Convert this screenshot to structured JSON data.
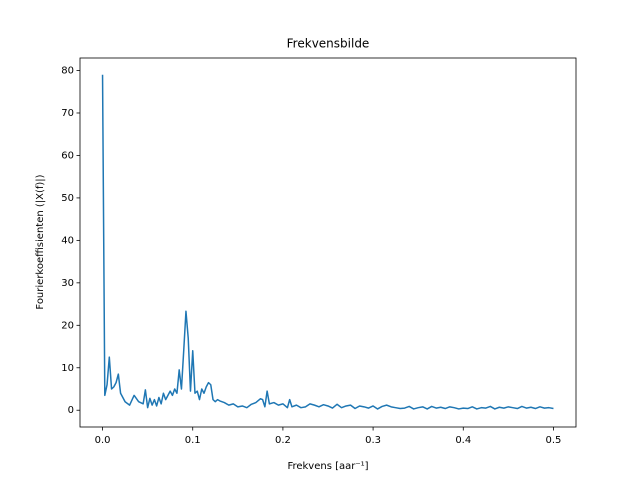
{
  "chart_data": {
    "type": "line",
    "title": "Frekvensbilde",
    "xlabel": "Frekvens [aar⁻¹]",
    "ylabel": "Fourierkoeffisienten (|X(f)|)",
    "color": "#1f77b4",
    "x": [
      0,
      0.0025,
      0.005,
      0.0075,
      0.01,
      0.0125,
      0.015,
      0.0175,
      0.02,
      0.025,
      0.03,
      0.035,
      0.04,
      0.045,
      0.0475,
      0.05,
      0.0525,
      0.055,
      0.0575,
      0.06,
      0.0625,
      0.065,
      0.0675,
      0.07,
      0.0725,
      0.075,
      0.0775,
      0.08,
      0.0825,
      0.085,
      0.0875,
      0.09,
      0.0925,
      0.095,
      0.0975,
      0.1,
      0.1025,
      0.105,
      0.1075,
      0.11,
      0.1125,
      0.115,
      0.1175,
      0.12,
      0.1225,
      0.125,
      0.1275,
      0.13,
      0.135,
      0.14,
      0.145,
      0.15,
      0.155,
      0.16,
      0.165,
      0.17,
      0.175,
      0.1775,
      0.18,
      0.1825,
      0.185,
      0.19,
      0.195,
      0.2,
      0.205,
      0.2075,
      0.21,
      0.215,
      0.22,
      0.225,
      0.23,
      0.235,
      0.24,
      0.245,
      0.25,
      0.255,
      0.26,
      0.265,
      0.27,
      0.275,
      0.28,
      0.285,
      0.29,
      0.295,
      0.3,
      0.305,
      0.31,
      0.315,
      0.32,
      0.325,
      0.33,
      0.335,
      0.34,
      0.345,
      0.35,
      0.355,
      0.36,
      0.365,
      0.37,
      0.375,
      0.38,
      0.385,
      0.39,
      0.395,
      0.4,
      0.405,
      0.41,
      0.415,
      0.42,
      0.425,
      0.43,
      0.435,
      0.44,
      0.445,
      0.45,
      0.455,
      0.46,
      0.465,
      0.47,
      0.475,
      0.48,
      0.485,
      0.49,
      0.495,
      0.5
    ],
    "values": [
      79,
      3.5,
      6,
      12.5,
      5,
      5.5,
      6.5,
      8.5,
      4,
      2,
      1.2,
      3.5,
      2,
      1.5,
      4.8,
      0.6,
      2.8,
      1.2,
      2.5,
      1,
      3,
      1.5,
      4,
      2.5,
      3.5,
      4.5,
      3.5,
      5,
      4,
      9.5,
      5,
      14,
      23.3,
      17,
      4.5,
      14,
      4,
      4.5,
      2.5,
      5,
      4,
      5.5,
      6.5,
      6,
      2.5,
      2,
      2.5,
      2.2,
      1.8,
      1.2,
      1.5,
      0.8,
      1,
      0.6,
      1.4,
      1.8,
      2.7,
      2.5,
      0.8,
      4.5,
      1.5,
      1.8,
      1.2,
      1.5,
      0.6,
      2.5,
      0.8,
      1.2,
      0.6,
      0.8,
      1.5,
      1.2,
      0.8,
      1.3,
      1,
      0.5,
      1.4,
      0.6,
      1,
      1.2,
      0.4,
      1,
      0.8,
      0.5,
      1,
      0.3,
      0.9,
      1.2,
      0.8,
      0.6,
      0.4,
      0.5,
      0.9,
      0.3,
      0.6,
      0.8,
      0.3,
      0.9,
      0.5,
      0.7,
      0.4,
      0.8,
      0.6,
      0.3,
      0.5,
      0.4,
      0.8,
      0.3,
      0.6,
      0.5,
      0.9,
      0.3,
      0.7,
      0.5,
      0.8,
      0.6,
      0.4,
      0.9,
      0.5,
      0.7,
      0.4,
      0.8,
      0.5,
      0.6,
      0.4
    ],
    "xlim": [
      -0.025,
      0.525
    ],
    "xticks": [
      {
        "value": 0,
        "label": "0.0"
      },
      0.1,
      0.2,
      0.3,
      0.4,
      0.5
    ],
    "ylim": [
      -3.95,
      82.95
    ],
    "yticks": [
      0,
      10,
      20,
      30,
      40,
      50,
      60,
      70,
      80
    ]
  }
}
